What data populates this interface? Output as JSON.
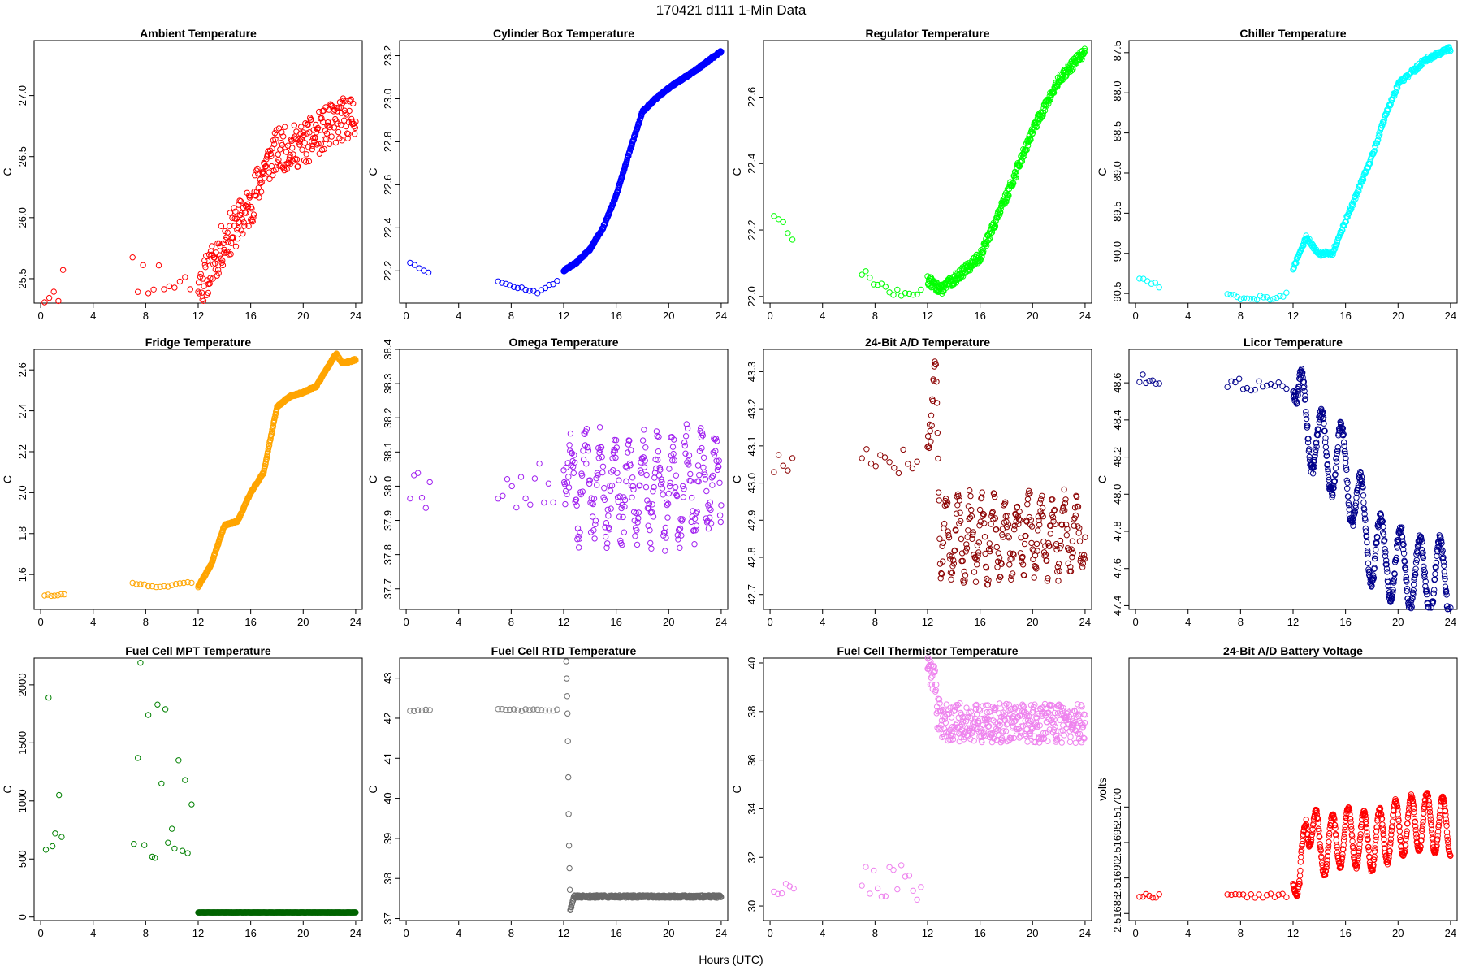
{
  "figure": {
    "title": "170421    d111    1-Min Data",
    "xlabel": "Hours (UTC)"
  },
  "chart_data": [
    {
      "type": "scatter",
      "title": "Ambient Temperature",
      "ylabel": "C",
      "color": "#ff0000",
      "xlim": [
        -0.5,
        24.5
      ],
      "ylim": [
        25.3,
        27.45
      ],
      "xticks": [
        0,
        4,
        8,
        12,
        16,
        20,
        24
      ],
      "yticks": [
        25.5,
        26.0,
        26.5,
        27.0
      ],
      "ytick_labels": [
        "25.5",
        "26.0",
        "26.5",
        "27.0"
      ],
      "knots": [
        [
          0.3,
          25.4
        ],
        [
          1.8,
          25.5
        ],
        [
          7,
          25.55
        ],
        [
          11.5,
          25.45
        ],
        [
          12,
          25.4
        ],
        [
          13,
          25.6
        ],
        [
          14,
          25.8
        ],
        [
          16,
          26.1
        ],
        [
          17,
          26.4
        ],
        [
          18,
          26.55
        ],
        [
          20,
          26.6
        ],
        [
          22,
          26.75
        ],
        [
          24,
          26.85
        ]
      ],
      "segments": [
        [
          0.3,
          1.8
        ],
        [
          7,
          11.5
        ],
        [
          12,
          24
        ]
      ],
      "spacing": [
        0.35,
        0.4,
        0.04
      ],
      "noise": 0.18,
      "seed": 11
    },
    {
      "type": "scatter",
      "title": "Cylinder Box Temperature",
      "ylabel": "C",
      "color": "#0000ff",
      "xlim": [
        -0.5,
        24.5
      ],
      "ylim": [
        22.05,
        23.27
      ],
      "xticks": [
        0,
        4,
        8,
        12,
        16,
        20,
        24
      ],
      "yticks": [
        22.2,
        22.4,
        22.6,
        22.8,
        23.0,
        23.2
      ],
      "ytick_labels": [
        "22.2",
        "22.4",
        "22.6",
        "22.8",
        "23.0",
        "23.2"
      ],
      "knots": [
        [
          0.3,
          22.24
        ],
        [
          1.8,
          22.19
        ],
        [
          7,
          22.15
        ],
        [
          8,
          22.13
        ],
        [
          10,
          22.1
        ],
        [
          11.5,
          22.15
        ],
        [
          12,
          22.2
        ],
        [
          13,
          22.24
        ],
        [
          14,
          22.3
        ],
        [
          15,
          22.4
        ],
        [
          16,
          22.55
        ],
        [
          17,
          22.75
        ],
        [
          18,
          22.94
        ],
        [
          19,
          23.0
        ],
        [
          20,
          23.05
        ],
        [
          22,
          23.13
        ],
        [
          24,
          23.22
        ]
      ],
      "segments": [
        [
          0.3,
          1.8
        ],
        [
          7,
          11.5
        ],
        [
          12,
          24
        ]
      ],
      "spacing": [
        0.35,
        0.3,
        0.02
      ],
      "noise": 0.005,
      "seed": 12
    },
    {
      "type": "scatter",
      "title": "Regulator Temperature",
      "ylabel": "C",
      "color": "#00ff00",
      "xlim": [
        -0.5,
        24.5
      ],
      "ylim": [
        21.98,
        22.77
      ],
      "xticks": [
        0,
        4,
        8,
        12,
        16,
        20,
        24
      ],
      "yticks": [
        22.0,
        22.2,
        22.4,
        22.6
      ],
      "ytick_labels": [
        "22.0",
        "22.2",
        "22.4",
        "22.6"
      ],
      "knots": [
        [
          0.3,
          22.25
        ],
        [
          1.8,
          22.18
        ],
        [
          7,
          22.07
        ],
        [
          9,
          22.02
        ],
        [
          10,
          22.0
        ],
        [
          11.5,
          22.02
        ],
        [
          12,
          22.05
        ],
        [
          13,
          22.02
        ],
        [
          14,
          22.05
        ],
        [
          16,
          22.12
        ],
        [
          18,
          22.3
        ],
        [
          20,
          22.5
        ],
        [
          22,
          22.65
        ],
        [
          24,
          22.74
        ]
      ],
      "segments": [
        [
          0.3,
          1.8
        ],
        [
          7,
          11.5
        ],
        [
          12,
          24
        ]
      ],
      "spacing": [
        0.35,
        0.3,
        0.03
      ],
      "noise": 0.015,
      "seed": 13
    },
    {
      "type": "scatter",
      "title": "Chiller Temperature",
      "ylabel": "C",
      "color": "#00ffff",
      "xlim": [
        -0.5,
        24.5
      ],
      "ylim": [
        -90.62,
        -87.35
      ],
      "xticks": [
        0,
        4,
        8,
        12,
        16,
        20,
        24
      ],
      "yticks": [
        -90.5,
        -90.0,
        -89.5,
        -89.0,
        -88.5,
        -88.0,
        -87.5
      ],
      "ytick_labels": [
        "-90.5",
        "-90.0",
        "-89.5",
        "-89.0",
        "-88.5",
        "-88.0",
        "-87.5"
      ],
      "knots": [
        [
          0.3,
          -90.3
        ],
        [
          1.8,
          -90.4
        ],
        [
          7,
          -90.5
        ],
        [
          8,
          -90.55
        ],
        [
          11,
          -90.55
        ],
        [
          11.5,
          -90.5
        ],
        [
          12,
          -90.2
        ],
        [
          13,
          -89.8
        ],
        [
          14,
          -90.0
        ],
        [
          15,
          -90.0
        ],
        [
          16,
          -89.6
        ],
        [
          17,
          -89.2
        ],
        [
          18,
          -88.8
        ],
        [
          19,
          -88.3
        ],
        [
          20,
          -87.9
        ],
        [
          22,
          -87.6
        ],
        [
          24,
          -87.45
        ]
      ],
      "segments": [
        [
          0.3,
          1.8
        ],
        [
          7,
          11.5
        ],
        [
          12,
          24
        ]
      ],
      "spacing": [
        0.3,
        0.25,
        0.04
      ],
      "noise": 0.03,
      "seed": 14
    },
    {
      "type": "scatter",
      "title": "Fridge Temperature",
      "ylabel": "C",
      "color": "#ffa500",
      "xlim": [
        -0.5,
        24.5
      ],
      "ylim": [
        1.43,
        2.7
      ],
      "xticks": [
        0,
        4,
        8,
        12,
        16,
        20,
        24
      ],
      "yticks": [
        1.6,
        1.8,
        2.0,
        2.2,
        2.4,
        2.6
      ],
      "ytick_labels": [
        "1.6",
        "1.8",
        "2.0",
        "2.2",
        "2.4",
        "2.6"
      ],
      "knots": [
        [
          0.3,
          1.5
        ],
        [
          1.8,
          1.5
        ],
        [
          7,
          1.56
        ],
        [
          9,
          1.54
        ],
        [
          11.5,
          1.56
        ],
        [
          12,
          1.54
        ],
        [
          13,
          1.65
        ],
        [
          14,
          1.84
        ],
        [
          15,
          1.86
        ],
        [
          16,
          2.0
        ],
        [
          17,
          2.1
        ],
        [
          18,
          2.42
        ],
        [
          19,
          2.47
        ],
        [
          20,
          2.49
        ],
        [
          21,
          2.52
        ],
        [
          22.5,
          2.68
        ],
        [
          23,
          2.63
        ],
        [
          24,
          2.65
        ]
      ],
      "segments": [
        [
          0.3,
          1.8
        ],
        [
          7,
          11.5
        ],
        [
          12,
          24
        ]
      ],
      "spacing": [
        0.25,
        0.3,
        0.02
      ],
      "noise": 0.005,
      "seed": 15
    },
    {
      "type": "scatter",
      "title": "Omega Temperature",
      "ylabel": "C",
      "color": "#a020f0",
      "xlim": [
        -0.5,
        24.5
      ],
      "ylim": [
        37.64,
        38.4
      ],
      "xticks": [
        0,
        4,
        8,
        12,
        16,
        20,
        24
      ],
      "yticks": [
        37.7,
        37.8,
        37.9,
        38.0,
        38.1,
        38.2,
        38.3,
        38.4
      ],
      "ytick_labels": [
        "37.7",
        "37.8",
        "37.9",
        "38.0",
        "38.1",
        "38.2",
        "38.3",
        "38.4"
      ],
      "knots": [
        [
          0.3,
          38.0
        ],
        [
          1.8,
          38.0
        ],
        [
          7,
          38.0
        ],
        [
          11.5,
          38.0
        ],
        [
          12,
          38.0
        ],
        [
          24,
          38.0
        ]
      ],
      "segments": [
        [
          0.3,
          1.8
        ],
        [
          7,
          11.5
        ],
        [
          12,
          24
        ]
      ],
      "spacing": [
        0.3,
        0.35,
        0.04
      ],
      "noise": 0.07,
      "osc_amp": 0.12,
      "osc_period": 1.1,
      "seed": 16
    },
    {
      "type": "scatter",
      "title": "24-Bit A/D Temperature",
      "ylabel": "C",
      "color": "#8b0000",
      "xlim": [
        -0.5,
        24.5
      ],
      "ylim": [
        42.66,
        43.36
      ],
      "xticks": [
        0,
        4,
        8,
        12,
        16,
        20,
        24
      ],
      "yticks": [
        42.7,
        42.8,
        42.9,
        43.0,
        43.1,
        43.2,
        43.3
      ],
      "ytick_labels": [
        "42.7",
        "42.8",
        "42.9",
        "43.0",
        "43.1",
        "43.2",
        "43.3"
      ],
      "knots": [
        [
          0.3,
          43.05
        ],
        [
          1.8,
          43.05
        ],
        [
          7,
          43.08
        ],
        [
          11.5,
          43.05
        ],
        [
          12,
          43.1
        ],
        [
          12.7,
          43.25
        ],
        [
          13,
          42.85
        ],
        [
          24,
          42.86
        ]
      ],
      "segments": [
        [
          0.3,
          1.8
        ],
        [
          7,
          11.5
        ],
        [
          12,
          24
        ]
      ],
      "spacing": [
        0.35,
        0.35,
        0.04
      ],
      "noise": 0.04,
      "osc_amp": 0.09,
      "osc_period": 0.9,
      "seed": 17
    },
    {
      "type": "scatter",
      "title": "Licor Temperature",
      "ylabel": "C",
      "color": "#00008b",
      "xlim": [
        -0.5,
        24.5
      ],
      "ylim": [
        47.38,
        48.78
      ],
      "xticks": [
        0,
        4,
        8,
        12,
        16,
        20,
        24
      ],
      "yticks": [
        47.4,
        47.6,
        47.8,
        48.0,
        48.2,
        48.4,
        48.6
      ],
      "ytick_labels": [
        "47.4",
        "47.6",
        "47.8",
        "48.0",
        "48.2",
        "48.4",
        "48.6"
      ],
      "knots": [
        [
          0.3,
          48.62
        ],
        [
          1.8,
          48.62
        ],
        [
          7,
          48.6
        ],
        [
          11.5,
          48.57
        ],
        [
          12,
          48.55
        ],
        [
          14,
          48.25
        ],
        [
          16,
          48.15
        ],
        [
          18,
          47.7
        ],
        [
          20,
          47.62
        ],
        [
          22,
          47.55
        ],
        [
          24,
          47.55
        ]
      ],
      "segments": [
        [
          0.3,
          1.8
        ],
        [
          7,
          11.5
        ],
        [
          12,
          24
        ]
      ],
      "spacing": [
        0.25,
        0.3,
        0.025
      ],
      "noise": 0.03,
      "osc_amp": 0.2,
      "osc_period": 1.5,
      "seed": 18
    },
    {
      "type": "scatter",
      "title": "Fuel Cell MPT Temperature",
      "ylabel": "C",
      "color": "#008000",
      "color2": "#006400",
      "xlim": [
        -0.5,
        24.5
      ],
      "ylim": [
        -30,
        2230
      ],
      "xticks": [
        0,
        4,
        8,
        12,
        16,
        20,
        24
      ],
      "yticks": [
        0,
        500,
        1000,
        1500,
        2000
      ],
      "ytick_labels": [
        "0",
        "500",
        "1000",
        "1500",
        "2000"
      ],
      "scatter_points": [
        [
          0.4,
          580
        ],
        [
          0.6,
          1890
        ],
        [
          0.9,
          610
        ],
        [
          1.1,
          720
        ],
        [
          1.4,
          1050
        ],
        [
          1.6,
          690
        ],
        [
          7.1,
          630
        ],
        [
          7.4,
          1370
        ],
        [
          7.6,
          2190
        ],
        [
          7.9,
          620
        ],
        [
          8.2,
          1740
        ],
        [
          8.5,
          520
        ],
        [
          8.7,
          510
        ],
        [
          8.9,
          1830
        ],
        [
          9.2,
          1150
        ],
        [
          9.5,
          1790
        ],
        [
          9.7,
          640
        ],
        [
          10.0,
          760
        ],
        [
          10.2,
          590
        ],
        [
          10.5,
          1350
        ],
        [
          10.8,
          570
        ],
        [
          11.0,
          1180
        ],
        [
          11.2,
          550
        ],
        [
          11.5,
          970
        ]
      ],
      "knots": [
        [
          12.0,
          40
        ],
        [
          24.0,
          40
        ]
      ],
      "segments": [
        [
          12,
          24
        ]
      ],
      "spacing": [
        0.025
      ],
      "noise": 1,
      "seed": 19
    },
    {
      "type": "scatter",
      "title": "Fuel Cell RTD Temperature",
      "ylabel": "C",
      "color": "#808080",
      "color2": "#696969",
      "xlim": [
        -0.5,
        24.5
      ],
      "ylim": [
        36.95,
        43.5
      ],
      "xticks": [
        0,
        4,
        8,
        12,
        16,
        20,
        24
      ],
      "yticks": [
        37,
        38,
        39,
        40,
        41,
        42,
        43
      ],
      "ytick_labels": [
        "37",
        "38",
        "39",
        "40",
        "41",
        "42",
        "43"
      ],
      "knots": [
        [
          0.3,
          42.2
        ],
        [
          1.8,
          42.2
        ],
        [
          7,
          42.2
        ],
        [
          11.5,
          42.2
        ],
        [
          12,
          42.2
        ],
        [
          12.2,
          43.4
        ],
        [
          12.3,
          42.0
        ],
        [
          12.4,
          39.0
        ],
        [
          12.5,
          37.2
        ],
        [
          12.8,
          37.55
        ],
        [
          24,
          37.55
        ]
      ],
      "segments": [
        [
          0.3,
          1.8
        ],
        [
          7,
          11.5
        ],
        [
          12.2,
          24
        ]
      ],
      "spacing": [
        0.3,
        0.3,
        0.03
      ],
      "noise": 0.03,
      "seed": 20
    },
    {
      "type": "scatter",
      "title": "Fuel Cell Thermistor Temperature",
      "ylabel": "C",
      "color": "#ee82ee",
      "xlim": [
        -0.5,
        24.5
      ],
      "ylim": [
        29.4,
        40.2
      ],
      "xticks": [
        0,
        4,
        8,
        12,
        16,
        20,
        24
      ],
      "yticks": [
        30,
        32,
        34,
        36,
        38,
        40
      ],
      "ytick_labels": [
        "30",
        "32",
        "34",
        "36",
        "38",
        "40"
      ],
      "knots": [
        [
          0.3,
          31.0
        ],
        [
          1.8,
          31.0
        ],
        [
          7,
          31.0
        ],
        [
          11.5,
          31.0
        ],
        [
          12,
          39.8
        ],
        [
          12.5,
          39.7
        ],
        [
          12.8,
          37.8
        ],
        [
          13.5,
          37.55
        ],
        [
          24,
          37.5
        ]
      ],
      "segments": [
        [
          0.3,
          1.8
        ],
        [
          7,
          11.5
        ],
        [
          12,
          24
        ]
      ],
      "spacing": [
        0.3,
        0.3,
        0.03
      ],
      "noise": 0.8,
      "seed": 21
    },
    {
      "type": "scatter",
      "title": "24-Bit A/D Battery Voltage",
      "ylabel": "volts",
      "color": "#ff0000",
      "xlim": [
        -0.5,
        24.5
      ],
      "ylim": [
        2.51684,
        2.51721
      ],
      "xticks": [
        0,
        4,
        8,
        12,
        16,
        20,
        24
      ],
      "yticks": [
        2.51685,
        2.5169,
        2.51695,
        2.517
      ],
      "ytick_labels": [
        "2.51685",
        "2.51690",
        "2.51695",
        "2.51700"
      ],
      "knots": [
        [
          0.3,
          2.516875
        ],
        [
          1.8,
          2.516875
        ],
        [
          7,
          2.516875
        ],
        [
          11.5,
          2.516875
        ],
        [
          12,
          2.51689
        ],
        [
          12.5,
          2.51686
        ],
        [
          13,
          2.517
        ],
        [
          14,
          2.51694
        ],
        [
          16,
          2.51696
        ],
        [
          18,
          2.51695
        ],
        [
          20,
          2.51697
        ],
        [
          22,
          2.51698
        ],
        [
          24,
          2.51697
        ]
      ],
      "segments": [
        [
          0.3,
          1.8
        ],
        [
          7,
          11.5
        ],
        [
          12,
          24
        ]
      ],
      "spacing": [
        0.25,
        0.3,
        0.025
      ],
      "noise": 3e-06,
      "osc_amp": 4e-05,
      "osc_period": 1.2,
      "seed": 22
    }
  ]
}
